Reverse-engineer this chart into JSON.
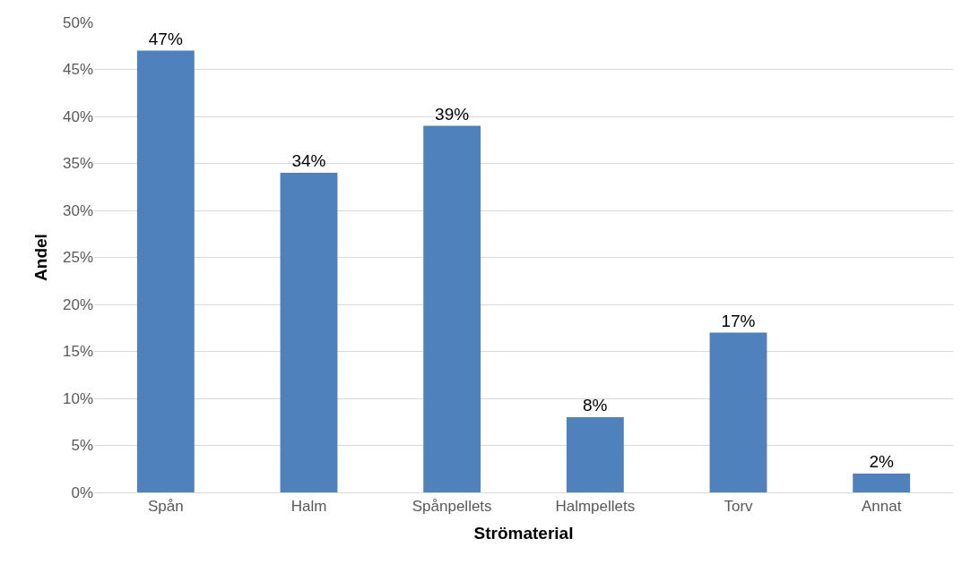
{
  "chart_data": {
    "type": "bar",
    "xlabel": "Strömaterial",
    "ylabel": "Andel",
    "categories": [
      "Spån",
      "Halm",
      "Spånpellets",
      "Halmpellets",
      "Torv",
      "Annat"
    ],
    "values": [
      47,
      34,
      39,
      8,
      17,
      2
    ],
    "value_labels": [
      "47%",
      "34%",
      "39%",
      "8%",
      "17%",
      "2%"
    ],
    "color": "#4f81bd",
    "ylim": [
      0,
      50
    ],
    "yticks": [
      {
        "value": 0,
        "label": "0%"
      },
      {
        "value": 5,
        "label": "5%"
      },
      {
        "value": 10,
        "label": "10%"
      },
      {
        "value": 15,
        "label": "15%"
      },
      {
        "value": 20,
        "label": "20%"
      },
      {
        "value": 25,
        "label": "25%"
      },
      {
        "value": 30,
        "label": "30%"
      },
      {
        "value": 35,
        "label": "35%"
      },
      {
        "value": 40,
        "label": "40%"
      },
      {
        "value": 45,
        "label": "45%"
      },
      {
        "value": 50,
        "label": "50%"
      }
    ],
    "grid": "y"
  }
}
